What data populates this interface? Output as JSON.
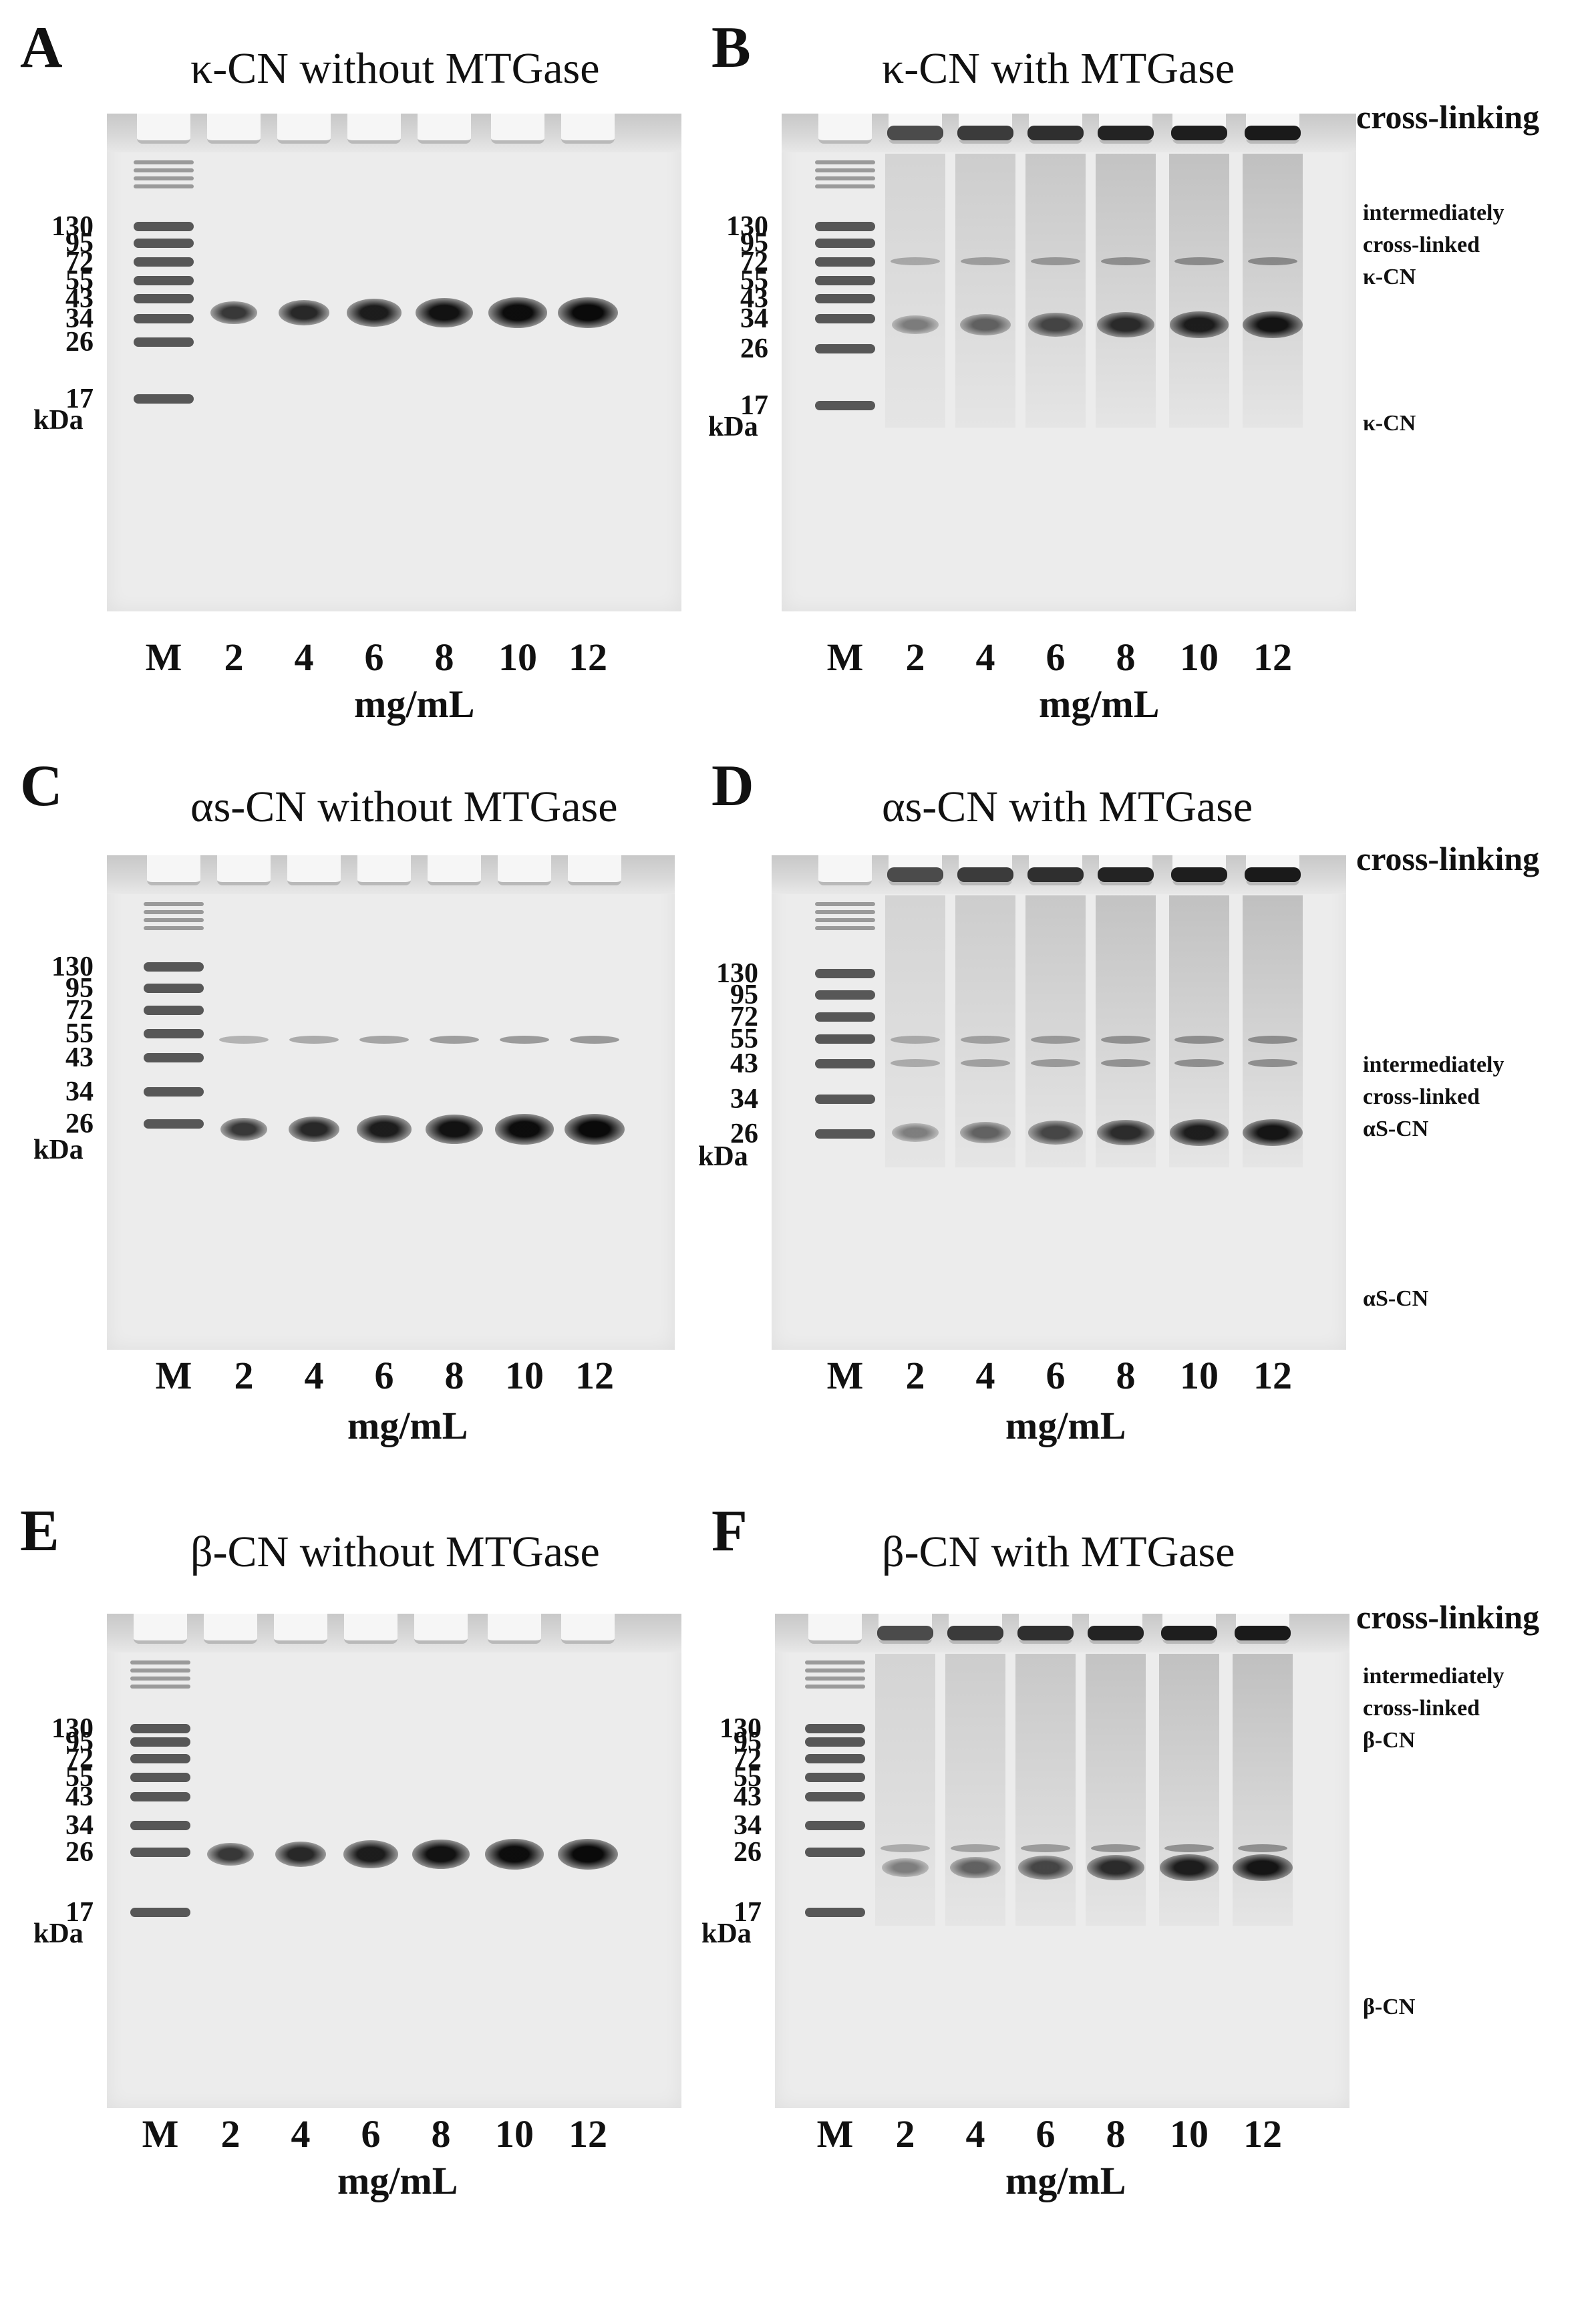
{
  "panels": [
    {
      "letter": "A",
      "title": "κ-CN without MTGase",
      "mw": [
        "130",
        "95",
        "72",
        "55",
        "43",
        "34",
        "26",
        "17"
      ],
      "kda": "kDa",
      "lanes": [
        "M",
        "2",
        "4",
        "6",
        "8",
        "10",
        "12"
      ],
      "unit": "mg/mL",
      "annotations": []
    },
    {
      "letter": "B",
      "title": "κ-CN with MTGase",
      "mw": [
        "130",
        "95",
        "72",
        "55",
        "43",
        "34",
        "26",
        "17"
      ],
      "kda": "kDa",
      "lanes": [
        "M",
        "2",
        "4",
        "6",
        "8",
        "10",
        "12"
      ],
      "unit": "mg/mL",
      "cross_linking": "cross-linking",
      "annotations": [
        "intermediately",
        "cross-linked",
        "κ-CN"
      ],
      "band_label": "κ-CN"
    },
    {
      "letter": "C",
      "title": "αs-CN  without MTGase",
      "mw": [
        "130",
        "95",
        "72",
        "55",
        "43",
        "34",
        "26"
      ],
      "kda": "kDa",
      "lanes": [
        "M",
        "2",
        "4",
        "6",
        "8",
        "10",
        "12"
      ],
      "unit": "mg/mL",
      "annotations": []
    },
    {
      "letter": "D",
      "title": "αs-CN with MTGase",
      "mw": [
        "130",
        "95",
        "72",
        "55",
        "43",
        "34",
        "26"
      ],
      "kda": "kDa",
      "lanes": [
        "M",
        "2",
        "4",
        "6",
        "8",
        "10",
        "12"
      ],
      "unit": "mg/mL",
      "cross_linking": "cross-linking",
      "annotations": [
        "intermediately",
        "cross-linked",
        "αS-CN"
      ],
      "band_label": "αS-CN"
    },
    {
      "letter": "E",
      "title": "β-CN without MTGase",
      "mw": [
        "130",
        "95",
        "72",
        "55",
        "43",
        "34",
        "26",
        "17"
      ],
      "kda": "kDa",
      "lanes": [
        "M",
        "2",
        "4",
        "6",
        "8",
        "10",
        "12"
      ],
      "unit": "mg/mL",
      "annotations": []
    },
    {
      "letter": "F",
      "title": "β-CN with MTGase",
      "mw": [
        "130",
        "95",
        "72",
        "55",
        "43",
        "34",
        "26",
        "17"
      ],
      "kda": "kDa",
      "lanes": [
        "M",
        "2",
        "4",
        "6",
        "8",
        "10",
        "12"
      ],
      "unit": "mg/mL",
      "cross_linking": "cross-linking",
      "annotations": [
        "intermediately",
        "cross-linked",
        "β-CN"
      ],
      "band_label": "β-CN"
    }
  ]
}
